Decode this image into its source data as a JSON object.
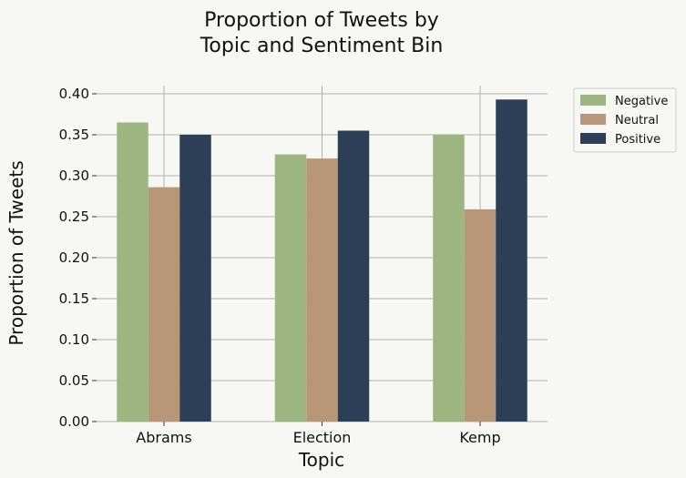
{
  "chart_data": {
    "type": "bar",
    "title": [
      "Proportion of Tweets by",
      "Topic and Sentiment Bin"
    ],
    "xlabel": "Topic",
    "ylabel": "Proportion of Tweets",
    "categories": [
      "Abrams",
      "Election",
      "Kemp"
    ],
    "series": [
      {
        "name": "Negative",
        "color": "#9db580",
        "values": [
          0.365,
          0.326,
          0.35
        ]
      },
      {
        "name": "Neutral",
        "color": "#b8967a",
        "values": [
          0.286,
          0.321,
          0.259
        ]
      },
      {
        "name": "Positive",
        "color": "#2d3e57",
        "values": [
          0.35,
          0.355,
          0.393
        ]
      }
    ],
    "ylim": [
      0,
      0.41
    ],
    "yticks": [
      "0.00",
      "0.05",
      "0.10",
      "0.15",
      "0.20",
      "0.25",
      "0.30",
      "0.35",
      "0.40"
    ],
    "grid": true,
    "legend_position": "outside-top-right"
  }
}
